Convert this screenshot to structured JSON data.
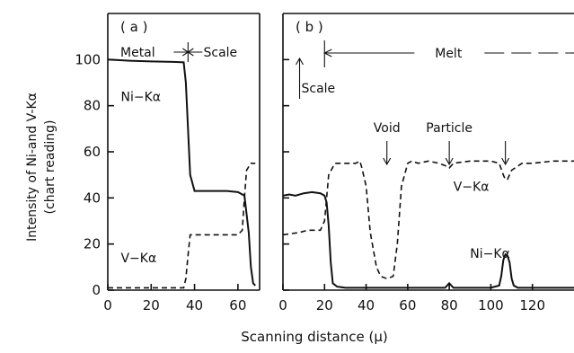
{
  "figure": {
    "ylabel_line1": "Intensity of Ni-and V-Kα",
    "ylabel_line2": "(chart reading)",
    "xlabel": "Scanning distance  (μ)"
  },
  "chart_data": [
    {
      "type": "line",
      "panel_label": "( a )",
      "xlim": [
        0,
        70
      ],
      "ylim": [
        0,
        120
      ],
      "x_ticks": [
        0,
        20,
        40,
        60
      ],
      "x_tick_labels": [
        "0",
        "20",
        "40",
        "60"
      ],
      "y_ticks": [
        0,
        20,
        40,
        60,
        80,
        100
      ],
      "y_tick_labels": [
        "0",
        "20",
        "40",
        "60",
        "80",
        "100"
      ],
      "region_labels": {
        "left": "Metal",
        "right": "Scale"
      },
      "boundary_x": 37,
      "series": [
        {
          "name": "Ni−Kα",
          "style": "solid",
          "x": [
            0,
            10,
            20,
            30,
            35,
            36,
            37,
            38,
            40,
            45,
            50,
            55,
            60,
            63,
            65,
            66,
            67,
            68
          ],
          "y": [
            100,
            99.5,
            99.2,
            99,
            98.8,
            90,
            70,
            50,
            43,
            43,
            43,
            43,
            42.5,
            41,
            25,
            10,
            3,
            2
          ]
        },
        {
          "name": "V−Kα",
          "style": "dashed",
          "x": [
            0,
            10,
            20,
            30,
            35,
            36,
            37,
            38,
            45,
            55,
            60,
            62,
            63,
            64,
            66,
            68
          ],
          "y": [
            1,
            1,
            1,
            1,
            1,
            5,
            15,
            24,
            24,
            24,
            24,
            26,
            40,
            52,
            55,
            55
          ]
        }
      ],
      "annotations": [
        {
          "text": "Ni−Kα",
          "x": 6,
          "y": 82
        },
        {
          "text": "V−Kα",
          "x": 6,
          "y": 12
        }
      ]
    },
    {
      "type": "line",
      "panel_label": "( b )",
      "xlim": [
        0,
        140
      ],
      "ylim": [
        0,
        120
      ],
      "x_ticks": [
        0,
        20,
        40,
        60,
        80,
        100,
        120
      ],
      "x_tick_labels": [
        "0",
        "20",
        "40",
        "60",
        "80",
        "100",
        "120"
      ],
      "y_ticks": [
        0,
        20,
        40,
        60,
        80,
        100
      ],
      "region_labels": {
        "scale": "Scale",
        "melt": "Melt"
      },
      "series": [
        {
          "name": "Ni−Kα",
          "style": "solid",
          "x": [
            0,
            3,
            6,
            10,
            14,
            18,
            20,
            21,
            22,
            23,
            24,
            26,
            30,
            40,
            50,
            60,
            70,
            78,
            80,
            82,
            90,
            100,
            104,
            105,
            106,
            107,
            108,
            109,
            110,
            111,
            113,
            120,
            130,
            140
          ],
          "y": [
            41,
            41.5,
            41,
            42,
            42.5,
            42,
            41,
            38,
            28,
            12,
            3,
            1.5,
            1,
            1,
            1,
            1,
            1,
            1,
            3,
            1,
            1,
            1,
            2,
            6,
            13,
            15.5,
            15,
            12,
            5,
            2,
            1,
            1,
            1,
            1
          ]
        },
        {
          "name": "V−Kα",
          "style": "dashed",
          "x": [
            0,
            4,
            8,
            12,
            18,
            20,
            22,
            25,
            30,
            35,
            37,
            38,
            40,
            42,
            45,
            47,
            50,
            53,
            55,
            57,
            60,
            62,
            65,
            70,
            75,
            78,
            80,
            82,
            90,
            100,
            104,
            106,
            107,
            108,
            110,
            115,
            120,
            130,
            140
          ],
          "y": [
            24,
            24.5,
            25,
            26,
            26,
            30,
            50,
            55,
            55,
            55,
            56,
            53,
            45,
            25,
            10,
            6,
            5,
            6,
            20,
            45,
            55,
            56,
            55,
            56,
            55,
            54,
            53,
            55,
            56,
            56,
            55,
            50,
            48,
            48,
            52,
            55,
            55,
            56,
            56
          ]
        }
      ],
      "annotations": [
        {
          "text": "Void",
          "x": 50
        },
        {
          "text": "Particle",
          "x": 80
        },
        {
          "text": "V−Kα",
          "x": 82,
          "y": 43
        },
        {
          "text": "Ni−Kα",
          "x": 90,
          "y": 14
        }
      ]
    }
  ]
}
